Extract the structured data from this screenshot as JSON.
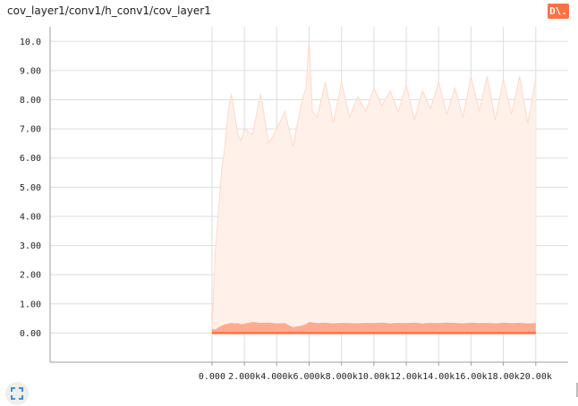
{
  "chart_title": "cov_layer1/conv1/h_conv1/cov_layer1",
  "data_button": {
    "label": "D\\.",
    "color": "#ff7043"
  },
  "expand_button_icon": "expand-icon",
  "colors": {
    "envelope_fill": "#fff1ea",
    "envelope_stroke": "#ffd8c8",
    "inner_fill": "#ffab91",
    "baseline": "#ff7043",
    "grid": "#dddddd",
    "axis": "#9e9e9e"
  },
  "chart_data": {
    "type": "area",
    "title": "cov_layer1/conv1/h_conv1/cov_layer1",
    "xlabel": "",
    "ylabel": "",
    "xlim": [
      -10000,
      22000
    ],
    "ylim": [
      -1.0,
      10.5
    ],
    "x_ticks": [
      "0.000",
      "2.000k",
      "4.000k",
      "6.000k",
      "8.000k",
      "10.00k",
      "12.00k",
      "14.00k",
      "16.00k",
      "18.00k",
      "20.00k"
    ],
    "x_tick_values": [
      0,
      2000,
      4000,
      6000,
      8000,
      10000,
      12000,
      14000,
      16000,
      18000,
      20000
    ],
    "y_ticks": [
      "0.00",
      "1.00",
      "2.00",
      "3.00",
      "4.00",
      "5.00",
      "6.00",
      "7.00",
      "8.00",
      "9.00",
      "10.0"
    ],
    "y_tick_values": [
      0,
      1,
      2,
      3,
      4,
      5,
      6,
      7,
      8,
      9,
      10
    ],
    "grid": true,
    "series": [
      {
        "role": "envelope",
        "x": [
          0,
          200,
          400,
          600,
          800,
          1000,
          1200,
          1400,
          1600,
          1800,
          2000,
          2500,
          3000,
          3500,
          4000,
          4500,
          5000,
          5500,
          5800,
          6000,
          6200,
          6500,
          7000,
          7500,
          8000,
          8500,
          9000,
          9500,
          10000,
          10500,
          11000,
          11500,
          12000,
          12500,
          13000,
          13500,
          14000,
          14500,
          15000,
          15500,
          16000,
          16500,
          17000,
          17500,
          18000,
          18500,
          19000,
          19500,
          20000
        ],
        "values": [
          0.1,
          2.8,
          4.2,
          5.6,
          6.4,
          7.6,
          8.2,
          7.5,
          6.8,
          6.6,
          7.0,
          6.8,
          8.2,
          6.5,
          7.0,
          7.6,
          6.4,
          7.8,
          8.4,
          10.0,
          7.6,
          7.4,
          8.6,
          7.2,
          8.6,
          7.4,
          8.1,
          7.6,
          8.4,
          7.8,
          8.3,
          7.6,
          8.5,
          7.3,
          8.3,
          7.7,
          8.6,
          7.5,
          8.4,
          7.4,
          8.8,
          7.6,
          8.8,
          7.3,
          8.7,
          7.5,
          8.8,
          7.2,
          8.7
        ]
      },
      {
        "role": "inner-band",
        "x": [
          0,
          200,
          400,
          600,
          800,
          1000,
          1200,
          1400,
          1600,
          1800,
          2000,
          2500,
          3000,
          3500,
          4000,
          4500,
          5000,
          5500,
          5800,
          6000,
          6200,
          6500,
          7000,
          7500,
          8000,
          8500,
          9000,
          9500,
          10000,
          10500,
          11000,
          11500,
          12000,
          12500,
          13000,
          13500,
          14000,
          14500,
          15000,
          15500,
          16000,
          16500,
          17000,
          17500,
          18000,
          18500,
          19000,
          19500,
          20000
        ],
        "values": [
          0.15,
          0.12,
          0.2,
          0.25,
          0.3,
          0.32,
          0.35,
          0.33,
          0.34,
          0.3,
          0.32,
          0.38,
          0.35,
          0.36,
          0.33,
          0.34,
          0.2,
          0.25,
          0.3,
          0.38,
          0.36,
          0.34,
          0.36,
          0.33,
          0.35,
          0.34,
          0.33,
          0.35,
          0.34,
          0.36,
          0.33,
          0.35,
          0.34,
          0.36,
          0.33,
          0.35,
          0.34,
          0.36,
          0.35,
          0.33,
          0.36,
          0.34,
          0.35,
          0.33,
          0.36,
          0.34,
          0.35,
          0.33,
          0.34
        ]
      },
      {
        "role": "baseline",
        "x": [
          0,
          20000
        ],
        "values": [
          0.0,
          0.0
        ]
      }
    ]
  }
}
